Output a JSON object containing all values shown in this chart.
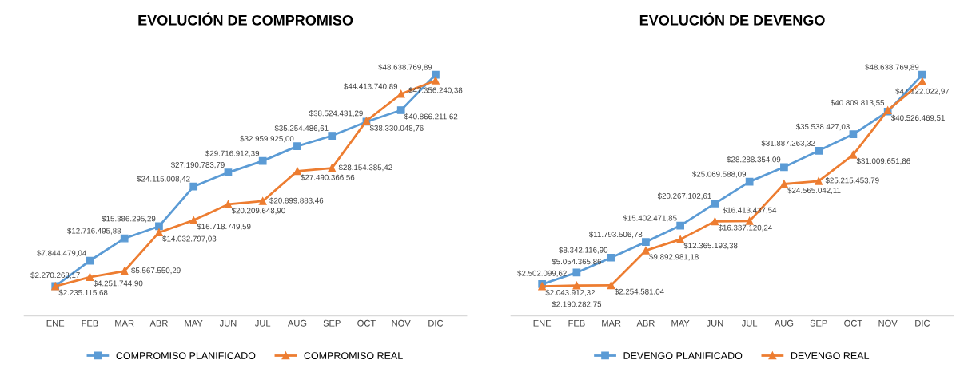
{
  "chart_data": [
    {
      "type": "line",
      "title": "EVOLUCIÓN DE COMPROMISO",
      "categories": [
        "ENE",
        "FEB",
        "MAR",
        "ABR",
        "MAY",
        "JUN",
        "JUL",
        "AUG",
        "SEP",
        "OCT",
        "NOV",
        "DIC"
      ],
      "tick_labels": "x",
      "grid": false,
      "legend": "bottom",
      "line_style": "solid",
      "series": [
        {
          "name": "COMPROMISO PLANIFICADO",
          "color": "#5b9bd5",
          "marker": "square",
          "values": [
            2270268.17,
            7844479.04,
            12716495.88,
            15386295.29,
            24115008.42,
            27190783.79,
            29716912.39,
            32959925.0,
            35254486.61,
            38330048.76,
            40866211.62,
            48638769.89
          ],
          "value_labels": [
            "$2.270.268,17",
            "$7.844.479,04",
            "$12.716.495,88",
            "$15.386.295,29",
            "$24.115.008,42",
            "$27.190.783,79",
            "$29.716.912,39",
            "$32.959.925,00",
            "$35.254.486,61",
            "$38.330.048,76",
            "$40.866.211,62",
            "$48.638.769,89"
          ]
        },
        {
          "name": "COMPROMISO REAL",
          "color": "#ed7d31",
          "marker": "triangle",
          "values": [
            2235115.68,
            4251744.9,
            5567550.29,
            14032797.03,
            16718749.59,
            20209648.9,
            20899883.46,
            27490366.56,
            28154385.42,
            38524431.29,
            44413740.89,
            47356240.38
          ],
          "value_labels": [
            "$2.235.115,68",
            "$4.251.744,90",
            "$5.567.550,29",
            "$14.032.797,03",
            "$16.718.749,59",
            "$20.209.648,90",
            "$20.899.883,46",
            "$27.490.366,56",
            "$28.154.385,42",
            "$38.524.431,29",
            "$44.413.740,89",
            "$47.356.240,38"
          ]
        }
      ]
    },
    {
      "type": "line",
      "title": "EVOLUCIÓN DE DEVENGO",
      "categories": [
        "ENE",
        "FEB",
        "MAR",
        "ABR",
        "MAY",
        "JUN",
        "JUL",
        "AUG",
        "SEP",
        "OCT",
        "NOV",
        "DIC"
      ],
      "tick_labels": "x",
      "grid": false,
      "legend": "bottom",
      "line_style": "solid",
      "series": [
        {
          "name": "DEVENGO PLANIFICADO",
          "color": "#5b9bd5",
          "marker": "square",
          "values": [
            2502099.62,
            5054365.86,
            8342116.9,
            11793506.78,
            15402471.85,
            20267102.61,
            25069588.09,
            28288354.09,
            31887263.32,
            35538427.03,
            40526469.51,
            48638769.89
          ],
          "value_labels": [
            "$2.502.099,62",
            "$5.054.365,86",
            "$8.342.116,90",
            "$11.793.506,78",
            "$15.402.471,85",
            "$20.267.102,61",
            "$25.069.588,09",
            "$28.288.354,09",
            "$31.887.263,32",
            "$35.538.427,03",
            "$40.526.469,51",
            "$48.638.769,89"
          ]
        },
        {
          "name": "DEVENGO REAL",
          "color": "#ed7d31",
          "marker": "triangle",
          "values": [
            2043912.32,
            2190282.75,
            2254581.04,
            9892981.18,
            12365193.38,
            16337120.24,
            16413437.54,
            24565042.11,
            25215453.79,
            31009651.86,
            40809813.55,
            47122022.97
          ],
          "value_labels": [
            "$2.043.912,32",
            "$2.190.282,75",
            "$2.254.581,04",
            "$9.892.981,18",
            "$12.365.193,38",
            "$16.337.120,24",
            "$16.413.437,54",
            "$24.565.042,11",
            "$25.215.453,79",
            "$31.009.651,86",
            "$40.809.813,55",
            "$47.122.022,97"
          ]
        }
      ]
    }
  ]
}
